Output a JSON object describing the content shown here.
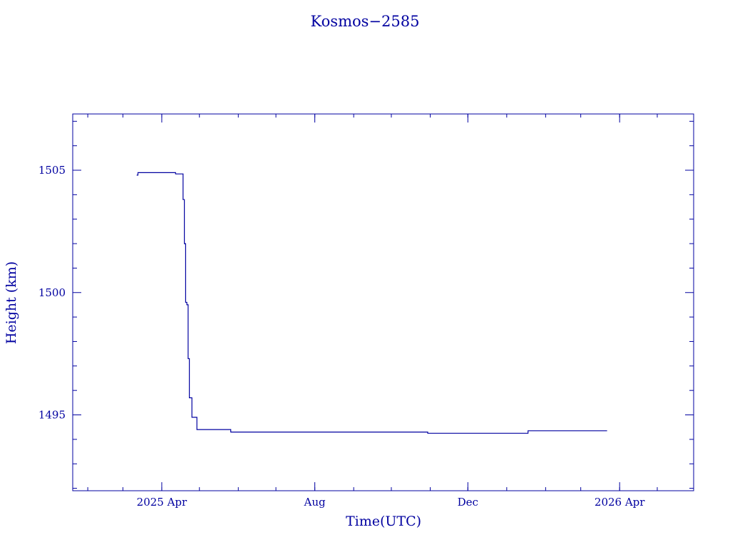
{
  "chart_data": {
    "type": "line",
    "title": "Kosmos−2585",
    "xlabel": "Time(UTC)",
    "ylabel": "Height (km)",
    "color": "#0000a0",
    "grid": false,
    "xlim": [
      "2025-01-20",
      "2026-05-30"
    ],
    "ylim": [
      1491.9,
      1507.3
    ],
    "x_ticks": [
      {
        "date": "2025-04-01",
        "label": "2025 Apr"
      },
      {
        "date": "2025-08-01",
        "label": "Aug"
      },
      {
        "date": "2025-12-01",
        "label": "Dec"
      },
      {
        "date": "2026-04-01",
        "label": "2026 Apr"
      }
    ],
    "y_ticks": [
      {
        "value": 1495,
        "label": "1495"
      },
      {
        "value": 1500,
        "label": "1500"
      },
      {
        "value": 1505,
        "label": "1505"
      }
    ],
    "series": [
      {
        "x": [
          "2025-03-12",
          "2025-03-13",
          "2025-04-12",
          "2025-04-18",
          "2025-04-19",
          "2025-04-20",
          "2025-04-21",
          "2025-04-22",
          "2025-04-23",
          "2025-04-25",
          "2025-04-29",
          "2025-05-05",
          "2025-05-26",
          "2025-10-30",
          "2026-01-15",
          "2026-01-18",
          "2026-03-22"
        ],
        "y": [
          1504.8,
          1504.9,
          1504.85,
          1503.8,
          1502.0,
          1499.6,
          1499.5,
          1497.3,
          1495.7,
          1494.9,
          1494.4,
          1494.4,
          1494.3,
          1494.25,
          1494.25,
          1494.35,
          1494.35
        ]
      }
    ]
  }
}
